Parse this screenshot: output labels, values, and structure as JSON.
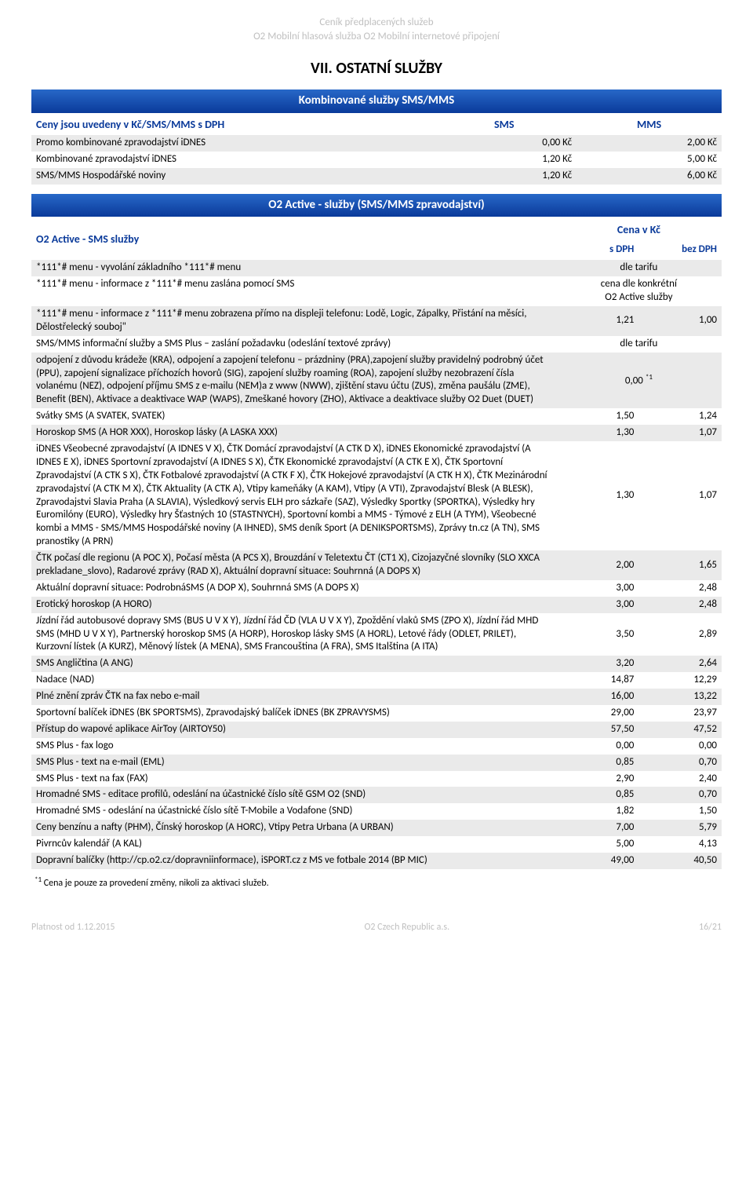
{
  "header": {
    "line1": "Ceník předplacených služeb",
    "line2": "O2 Mobilní hlasová služba   O2 Mobilní internetové připojení"
  },
  "main_title": "VII. OSTATNÍ SLUŽBY",
  "section1": {
    "bar": "Kombinované služby SMS/MMS",
    "col_header": "Ceny jsou uvedeny v Kč/SMS/MMS s DPH",
    "col_sms": "SMS",
    "col_mms": "MMS",
    "rows": [
      {
        "label": "Promo kombinované zpravodajství iDNES",
        "sms": "0,00 Kč",
        "mms": "2,00 Kč",
        "zebra": true
      },
      {
        "label": "Kombinované zpravodajství iDNES",
        "sms": "1,20 Kč",
        "mms": "5,00 Kč",
        "zebra": false
      },
      {
        "label": "SMS/MMS Hospodářské noviny",
        "sms": "1,20 Kč",
        "mms": "6,00 Kč",
        "zebra": true
      }
    ]
  },
  "section2": {
    "bar": "O2 Active - služby (SMS/MMS zpravodajství)",
    "subhead_left": "O2 Active - SMS služby",
    "subhead_right": "Cena v Kč",
    "col_sdph": "s DPH",
    "col_bdph": "bez DPH",
    "rows": [
      {
        "label": "*111*# menu - vyvolání základního *111*# menu",
        "span2": "dle tarifu",
        "zebra": true
      },
      {
        "label": "*111*# menu - informace z *111*# menu zaslána pomocí SMS",
        "span2_multiline": [
          "cena dle konkrétní",
          "O2 Active služby"
        ],
        "zebra": false
      },
      {
        "label": "*111*# menu - informace z *111*# menu zobrazena přímo na displeji telefonu: Lodě, Logic, Zápalky, Přistání na měsíci, Dělostřelecký souboj\"",
        "v1": "1,21",
        "v2": "1,00",
        "zebra": true
      },
      {
        "label": "SMS/MMS informační služby a SMS Plus – zaslání požadavku (odeslání textové zprávy)",
        "span2": "dle tarifu",
        "zebra": false
      },
      {
        "label": "odpojení z důvodu krádeže (KRA), odpojení a zapojení telefonu – prázdniny (PRA),zapojení služby pravidelný podrobný účet (PPU), zapojení signalizace příchozích hovorů (SIG), zapojení služby roaming (ROA), zapojení služby nezobrazení čísla volanému (NEZ), odpojení příjmu SMS z e-mailu (NEM)a z www (NWW), zjištění stavu účtu (ZUS), změna paušálu (ZME), Benefit (BEN),  Aktivace a deaktivace WAP (WAPS), Zmeškané hovory (ZHO), Aktivace a deaktivace služby O2 Duet (DUET)",
        "span2_sup": "0,00",
        "sup": "*1",
        "zebra": true
      },
      {
        "label": "Svátky SMS (A SVATEK, SVATEK)",
        "v1": "1,50",
        "v2": "1,24",
        "zebra": false
      },
      {
        "label": "Horoskop SMS (A HOR XXX), Horoskop lásky (A LASKA XXX)",
        "v1": "1,30",
        "v2": "1,07",
        "zebra": true
      },
      {
        "label": "iDNES Všeobecné zpravodajství (A IDNES V X), ČTK Domácí zpravodajství (A CTK D X), iDNES Ekonomické zpravodajství (A IDNES E X), iDNES Sportovní zpravodajství (A IDNES S X), ČTK Ekonomické zpravodajství (A CTK E X), ČTK Sportovní Zpravodajství (A CTK S X), ČTK Fotbalové zpravodajství (A CTK F X), ČTK Hokejové zpravodajství (A CTK H X), ČTK Mezinárodní zpravodajství (A CTK M X), ČTK Aktuality (A CTK A), Vtipy kameňáky (A KAM), Vtipy (A VTI), Zpravodajství Blesk (A BLESK), Zpravodajstvi Slavia Praha (A SLAVIA), Výsledkový servis ELH pro sázkaře (SAZ), Výsledky Sportky (SPORTKA), Výsledky hry Euromilóny (EURO), Výsledky hry Šťastných 10 (STASTNYCH), Sportovní kombi a MMS - Týmové z ELH (A TYM), Všeobecné kombi a MMS - SMS/MMS Hospodářské noviny  (A IHNED), SMS deník Sport (A DENIKSPORTSMS), Zprávy tn.cz (A TN), SMS pranostiky (A PRN)",
        "v1": "1,30",
        "v2": "1,07",
        "zebra": false
      },
      {
        "label": "ČTK počasí dle regionu (A POC X), Počasí města (A PCS X), Brouzdání v Teletextu ČT (CT1 X), Cizojazyčné slovníky (SLO XXCA prekladane_slovo), Radarové zprávy (RAD X), Aktuální dopravní situace: Souhrnná (A DOPS X)",
        "v1": "2,00",
        "v2": "1,65",
        "zebra": true
      },
      {
        "label": "Aktuální dopravní situace: PodrobnáSMS (A DOP X), Souhrnná SMS (A DOPS X)",
        "v1": "3,00",
        "v2": "2,48",
        "zebra": false
      },
      {
        "label": "Erotický horoskop (A HORO)",
        "v1": "3,00",
        "v2": "2,48",
        "zebra": true
      },
      {
        "label": "Jízdní řád autobusové dopravy SMS (BUS U V X Y), Jízdní řád ČD (VLA U V X Y), Zpoždění vlaků SMS (ZPO X), Jízdní řád MHD SMS (MHD U V X Y), Partnerský horoskop SMS (A HORP), Horoskop lásky SMS (A HORL), Letové řády (ODLET, PRILET), Kurzovní lístek (A KURZ), Měnový lístek (A MENA), SMS Francouština (A FRA), SMS Italština (A ITA)",
        "v1": "3,50",
        "v2": "2,89",
        "zebra": false
      },
      {
        "label": "SMS Angličtina (A ANG)",
        "v1": "3,20",
        "v2": "2,64",
        "zebra": true
      },
      {
        "label": "Nadace (NAD)",
        "v1": "14,87",
        "v2": "12,29",
        "zebra": false
      },
      {
        "label": "Plné znění zpráv ČTK na fax nebo e-mail",
        "v1": "16,00",
        "v2": "13,22",
        "zebra": true
      },
      {
        "label": "Sportovní balíček iDNES (BK SPORTSMS), Zpravodajský balíček iDNES (BK ZPRAVYSMS)",
        "v1": "29,00",
        "v2": "23,97",
        "zebra": false
      },
      {
        "label": "Přístup do wapové aplikace AirToy (AIRTOY50)",
        "v1": "57,50",
        "v2": "47,52",
        "zebra": true
      },
      {
        "label": "SMS Plus - fax logo",
        "v1": "0,00",
        "v2": "0,00",
        "zebra": false
      },
      {
        "label": "SMS Plus - text na e-mail (EML)",
        "v1": "0,85",
        "v2": "0,70",
        "zebra": true
      },
      {
        "label": "SMS Plus - text na fax (FAX)",
        "v1": "2,90",
        "v2": "2,40",
        "zebra": false
      },
      {
        "label": "Hromadné SMS - editace profilů, odeslání na účastnické číslo sítě GSM O2 (SND)",
        "v1": "0,85",
        "v2": "0,70",
        "zebra": true
      },
      {
        "label": "Hromadné SMS - odeslání na účastnické číslo sítě T-Mobile a Vodafone (SND)",
        "v1": "1,82",
        "v2": "1,50",
        "zebra": false
      },
      {
        "label": "Ceny benzínu a nafty (PHM), Čínský horoskop (A HORC), Vtipy Petra Urbana (A URBAN)",
        "v1": "7,00",
        "v2": "5,79",
        "zebra": true
      },
      {
        "label": "Pivrncův kalendář (A KAL)",
        "v1": "5,00",
        "v2": "4,13",
        "zebra": false
      },
      {
        "label": "Dopravní balíčky (http://cp.o2.cz/dopravniinformace), iSPORT.cz z MS ve fotbale 2014 (BP MIC)",
        "v1": "49,00",
        "v2": "40,50",
        "zebra": true
      }
    ]
  },
  "footnote": {
    "sup": "*1",
    "text": " Cena je pouze za provedení změny, nikoli za aktivaci služeb."
  },
  "footer": {
    "left": "Platnost od 1.12.2015",
    "center": "O2 Czech Republic a.s.",
    "right": "16/21"
  }
}
